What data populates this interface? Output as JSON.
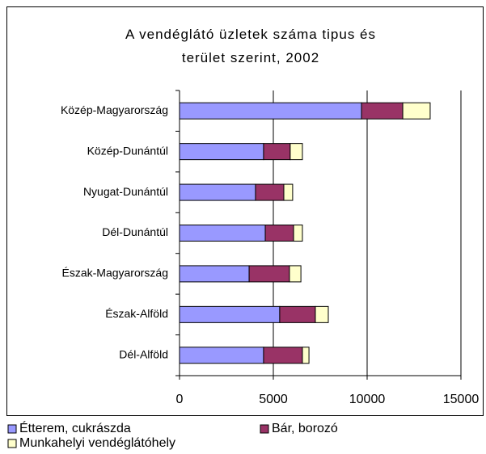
{
  "chart_data": {
    "type": "stacked_bar_horizontal",
    "title": "A vendéglátó üzletek száma tipus és terület szerint, 2002",
    "categories": [
      "Közép-Magyarország",
      "Közép-Dunántúl",
      "Nyugat-Dunántúl",
      "Dél-Dunántúl",
      "Észak-Magyarország",
      "Észak-Alföld",
      "Dél-Alföld"
    ],
    "series": [
      {
        "name": "Étterem, cukrászda",
        "color": "#9999ff",
        "values": [
          9700,
          4480,
          4050,
          4570,
          3710,
          5340,
          4480
        ]
      },
      {
        "name": "Bár, borozó",
        "color": "#993366",
        "values": [
          2200,
          1420,
          1510,
          1510,
          2150,
          1900,
          2070
        ]
      },
      {
        "name": "Munkahelyi vendéglátóhely",
        "color": "#ffffcc",
        "values": [
          1460,
          650,
          470,
          470,
          610,
          690,
          350
        ]
      }
    ],
    "xlim": [
      0,
      15000
    ],
    "xticks": [
      0,
      5000,
      10000,
      15000
    ],
    "grid": true,
    "legend_position": "bottom"
  }
}
